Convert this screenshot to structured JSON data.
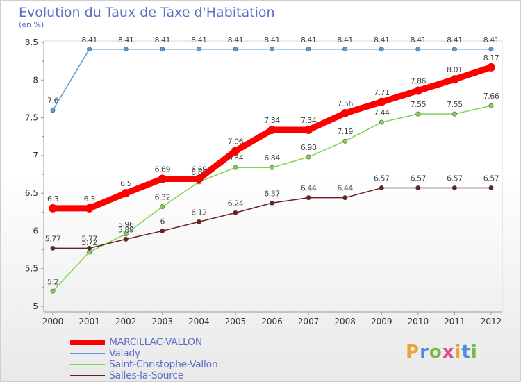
{
  "chart_data": {
    "type": "line",
    "title": "Evolution du Taux de Taxe d'Habitation",
    "subtitle": "(en %)",
    "x": [
      "2000",
      "2001",
      "2002",
      "2003",
      "2004",
      "2005",
      "2006",
      "2007",
      "2008",
      "2009",
      "2010",
      "2011",
      "2012"
    ],
    "ylim": [
      5,
      8.5
    ],
    "yticks": [
      "5",
      "5.5",
      "6",
      "6.5",
      "7",
      "7.5",
      "8",
      "8.5"
    ],
    "series": [
      {
        "name": "Valady",
        "color": "#5b9bd5",
        "values": [
          7.6,
          8.41,
          8.41,
          8.41,
          8.41,
          8.41,
          8.41,
          8.41,
          8.41,
          8.41,
          8.41,
          8.41,
          8.41
        ],
        "labels": [
          "7.6",
          "8.41",
          "8.41",
          "8.41",
          "8.41",
          "8.41",
          "8.41",
          "8.41",
          "8.41",
          "8.41",
          "8.41",
          "8.41",
          "8.41"
        ]
      },
      {
        "name": "Saint-Christophe-Vallon",
        "color": "#7ed34f",
        "values": [
          5.2,
          5.72,
          5.96,
          6.32,
          6.65,
          6.84,
          6.84,
          6.98,
          7.19,
          7.44,
          7.55,
          7.55,
          7.66
        ],
        "labels": [
          "5.2",
          "5.72",
          "5.96",
          "6.32",
          "6.65",
          "6.84",
          "6.84",
          "6.98",
          "7.19",
          "7.44",
          "7.55",
          "7.55",
          "7.66"
        ]
      },
      {
        "name": "Salles-la-Source",
        "color": "#6b1f1f",
        "values": [
          5.77,
          5.77,
          5.89,
          6,
          6.12,
          6.24,
          6.37,
          6.44,
          6.44,
          6.57,
          6.57,
          6.57,
          6.57
        ],
        "labels": [
          "5.77",
          "5.77",
          "5.89",
          "6",
          "6.12",
          "6.24",
          "6.37",
          "6.44",
          "6.44",
          "6.57",
          "6.57",
          "6.57",
          "6.57"
        ]
      },
      {
        "name": "MARCILLAC-VALLON",
        "color": "#ff0000",
        "values": [
          6.3,
          6.3,
          6.5,
          6.69,
          6.69,
          7.06,
          7.34,
          7.34,
          7.56,
          7.71,
          7.86,
          8.01,
          8.17
        ],
        "labels": [
          "6.3",
          "6.3",
          "6.5",
          "6.69",
          "6.69",
          "7.06",
          "7.34",
          "7.34",
          "7.56",
          "7.71",
          "7.86",
          "8.01",
          "8.17"
        ]
      }
    ],
    "legend_order": [
      "MARCILLAC-VALLON",
      "Valady",
      "Saint-Christophe-Vallon",
      "Salles-la-Source"
    ]
  },
  "legend": [
    {
      "name": "MARCILLAC-VALLON",
      "color": "#ff0000"
    },
    {
      "name": "Valady",
      "color": "#5b9bd5"
    },
    {
      "name": "Saint-Christophe-Vallon",
      "color": "#7ed34f"
    },
    {
      "name": "Salles-la-Source",
      "color": "#6b1f1f"
    }
  ],
  "logo": {
    "text": "Proxiti",
    "letters": [
      "P",
      "r",
      "o",
      "x",
      "i",
      "t",
      "i"
    ]
  }
}
